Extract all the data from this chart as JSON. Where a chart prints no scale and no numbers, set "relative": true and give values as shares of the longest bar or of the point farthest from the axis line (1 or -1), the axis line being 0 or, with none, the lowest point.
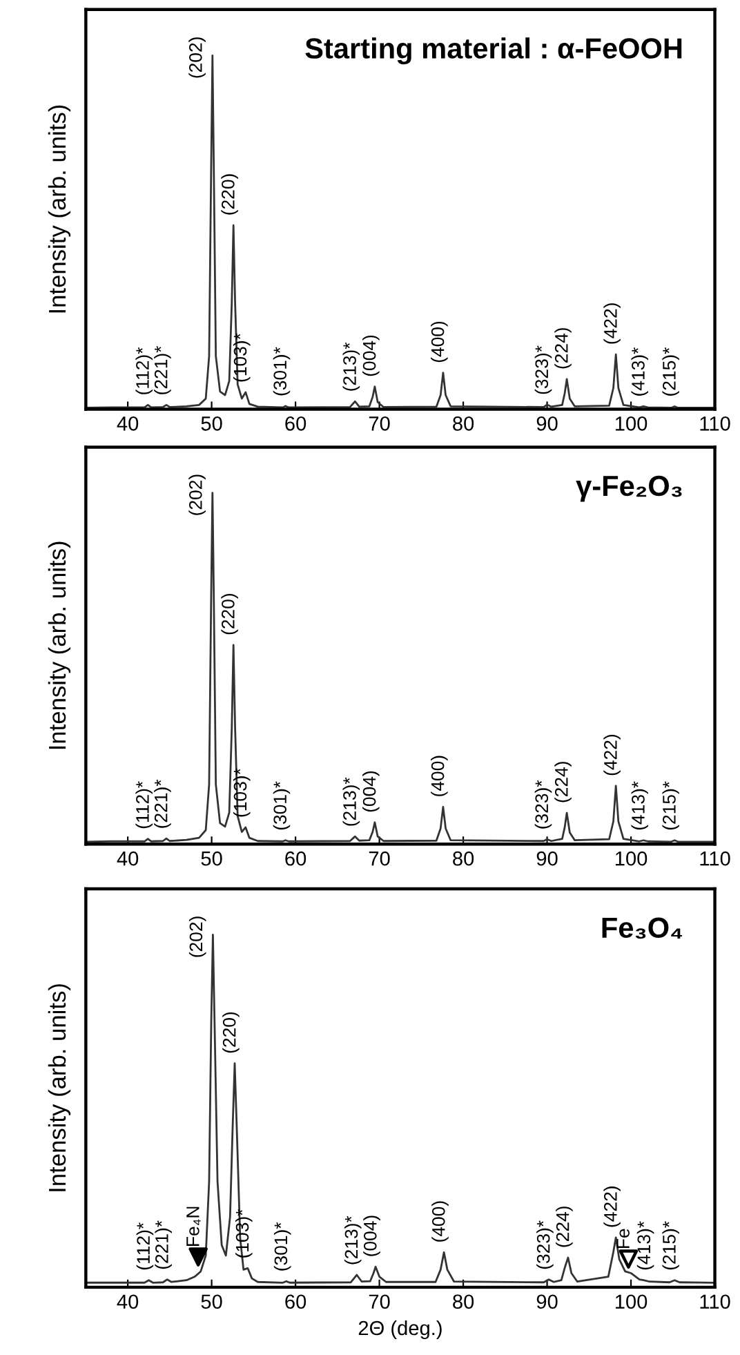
{
  "chart_data": [
    {
      "type": "line",
      "title": "Starting material : α-FeOOH",
      "ylabel": "Intensity (arb. units)",
      "relative": true,
      "xlim": [
        35,
        110
      ],
      "xticks": [
        40,
        50,
        60,
        70,
        80,
        90,
        100,
        110
      ],
      "grid": false,
      "marker": "none",
      "line_style": "solid",
      "series": [
        {
          "color": "#333333",
          "x": [
            35,
            38,
            40,
            42.0,
            42.4,
            42.8,
            44.2,
            44.6,
            45.0,
            47,
            48.5,
            49.3,
            49.7,
            49.95,
            50.1,
            50.25,
            50.5,
            51.0,
            51.6,
            52.1,
            52.4,
            52.6,
            52.8,
            53.1,
            53.6,
            54.05,
            54.5,
            55.5,
            58.5,
            58.8,
            59.2,
            66.5,
            67.1,
            67.6,
            68.8,
            69.2,
            69.45,
            69.8,
            70.5,
            76.8,
            77.3,
            77.6,
            77.9,
            78.5,
            89.6,
            90.0,
            90.5,
            91.8,
            92.1,
            92.35,
            92.7,
            93.3,
            97.4,
            97.9,
            98.2,
            98.5,
            99.1,
            101.0,
            101.5,
            102,
            104.8,
            105.2,
            105.6,
            110
          ],
          "values": [
            0.004,
            0.005,
            0.005,
            0.005,
            0.012,
            0.005,
            0.006,
            0.012,
            0.006,
            0.008,
            0.012,
            0.03,
            0.15,
            0.7,
            1.0,
            0.7,
            0.15,
            0.05,
            0.04,
            0.08,
            0.3,
            0.52,
            0.3,
            0.07,
            0.03,
            0.048,
            0.015,
            0.007,
            0.005,
            0.009,
            0.005,
            0.006,
            0.022,
            0.007,
            0.008,
            0.035,
            0.064,
            0.02,
            0.006,
            0.007,
            0.04,
            0.103,
            0.04,
            0.008,
            0.006,
            0.013,
            0.007,
            0.012,
            0.045,
            0.085,
            0.03,
            0.008,
            0.01,
            0.06,
            0.155,
            0.06,
            0.012,
            0.005,
            0.008,
            0.005,
            0.004,
            0.008,
            0.004,
            0.004
          ]
        }
      ],
      "annotations": [
        {
          "text": "(112)*",
          "x": 42.4,
          "y": 0.012
        },
        {
          "text": "(221)*",
          "x": 44.6,
          "y": 0.012
        },
        {
          "text": "(202)",
          "x": 50.1,
          "y": 1.0
        },
        {
          "text": "(220)",
          "x": 52.6,
          "y": 0.52
        },
        {
          "text": "(103)*",
          "x": 54.05,
          "y": 0.048
        },
        {
          "text": "(301)*",
          "x": 58.8,
          "y": 0.009
        },
        {
          "text": "(213)*",
          "x": 67.1,
          "y": 0.022
        },
        {
          "text": "(004)",
          "x": 69.45,
          "y": 0.064
        },
        {
          "text": "(400)",
          "x": 77.6,
          "y": 0.103
        },
        {
          "text": "(323)*",
          "x": 90.0,
          "y": 0.013
        },
        {
          "text": "(224)",
          "x": 92.35,
          "y": 0.085
        },
        {
          "text": "(422)",
          "x": 98.2,
          "y": 0.155
        },
        {
          "text": "(413)*",
          "x": 101.5,
          "y": 0.008
        },
        {
          "text": "(215)*",
          "x": 105.2,
          "y": 0.008
        }
      ]
    },
    {
      "type": "line",
      "title": "γ-Fe₂O₃",
      "ylabel": "Intensity (arb. units)",
      "relative": true,
      "xlim": [
        35,
        110
      ],
      "xticks": [
        40,
        50,
        60,
        70,
        80,
        90,
        100,
        110
      ],
      "grid": false,
      "marker": "none",
      "line_style": "solid",
      "series": [
        {
          "color": "#333333",
          "x": [
            35,
            38,
            40,
            42.0,
            42.4,
            42.8,
            44.2,
            44.6,
            45.0,
            47,
            48.5,
            49.3,
            49.7,
            49.95,
            50.1,
            50.25,
            50.5,
            51.0,
            51.6,
            52.1,
            52.4,
            52.6,
            52.8,
            53.1,
            53.6,
            54.05,
            54.5,
            55.5,
            58.5,
            58.8,
            59.2,
            66.5,
            67.1,
            67.6,
            68.8,
            69.2,
            69.45,
            69.8,
            70.5,
            76.8,
            77.3,
            77.6,
            77.9,
            78.5,
            89.6,
            90.0,
            90.5,
            91.8,
            92.1,
            92.35,
            92.7,
            93.3,
            97.4,
            97.9,
            98.2,
            98.5,
            99.1,
            101.0,
            101.5,
            102,
            104.8,
            105.2,
            105.6,
            110
          ],
          "values": [
            0.007,
            0.008,
            0.008,
            0.008,
            0.015,
            0.008,
            0.009,
            0.016,
            0.009,
            0.012,
            0.018,
            0.04,
            0.17,
            0.72,
            1.0,
            0.72,
            0.17,
            0.06,
            0.05,
            0.09,
            0.33,
            0.567,
            0.33,
            0.08,
            0.035,
            0.048,
            0.018,
            0.009,
            0.008,
            0.011,
            0.008,
            0.009,
            0.022,
            0.01,
            0.011,
            0.035,
            0.062,
            0.022,
            0.009,
            0.01,
            0.045,
            0.106,
            0.045,
            0.011,
            0.009,
            0.014,
            0.009,
            0.015,
            0.048,
            0.089,
            0.033,
            0.011,
            0.014,
            0.065,
            0.166,
            0.065,
            0.015,
            0.008,
            0.011,
            0.008,
            0.007,
            0.011,
            0.007,
            0.007
          ]
        }
      ],
      "annotations": [
        {
          "text": "(112)*",
          "x": 42.4,
          "y": 0.015
        },
        {
          "text": "(221)*",
          "x": 44.6,
          "y": 0.016
        },
        {
          "text": "(202)",
          "x": 50.1,
          "y": 1.0
        },
        {
          "text": "(220)",
          "x": 52.6,
          "y": 0.567
        },
        {
          "text": "(103)*",
          "x": 54.05,
          "y": 0.048
        },
        {
          "text": "(301)*",
          "x": 58.8,
          "y": 0.011
        },
        {
          "text": "(213)*",
          "x": 67.1,
          "y": 0.022
        },
        {
          "text": "(004)",
          "x": 69.45,
          "y": 0.062
        },
        {
          "text": "(400)",
          "x": 77.6,
          "y": 0.106
        },
        {
          "text": "(323)*",
          "x": 90.0,
          "y": 0.014
        },
        {
          "text": "(224)",
          "x": 92.35,
          "y": 0.089
        },
        {
          "text": "(422)",
          "x": 98.2,
          "y": 0.166
        },
        {
          "text": "(413)*",
          "x": 101.5,
          "y": 0.011
        },
        {
          "text": "(215)*",
          "x": 105.2,
          "y": 0.011
        }
      ]
    },
    {
      "type": "line",
      "title": "Fe₃O₄",
      "xlabel": "2Θ (deg.)",
      "ylabel": "Intensity (arb. units)",
      "relative": true,
      "xlim": [
        35,
        110
      ],
      "xticks": [
        40,
        50,
        60,
        70,
        80,
        90,
        100,
        110
      ],
      "grid": false,
      "line_style": "solid",
      "series": [
        {
          "color": "#333333",
          "marker": "none",
          "x": [
            35,
            38,
            40,
            42.0,
            42.5,
            43.0,
            44.2,
            44.7,
            45.2,
            47,
            48.0,
            48.7,
            49.3,
            49.7,
            49.95,
            50.15,
            50.35,
            50.7,
            51.2,
            51.7,
            52.2,
            52.5,
            52.75,
            53.0,
            53.4,
            53.8,
            54.3,
            54.8,
            55.5,
            58.5,
            58.9,
            59.3,
            66.6,
            67.3,
            67.9,
            68.9,
            69.3,
            69.55,
            70.0,
            70.8,
            76.7,
            77.3,
            77.7,
            78.1,
            78.9,
            89.6,
            90.2,
            90.8,
            91.7,
            92.1,
            92.5,
            92.9,
            93.6,
            97.3,
            97.9,
            98.2,
            98.6,
            99.3,
            100.0,
            101.0,
            101.5,
            102.2,
            104.6,
            105.2,
            105.8,
            110
          ],
          "values": [
            0.013,
            0.013,
            0.013,
            0.013,
            0.02,
            0.013,
            0.014,
            0.022,
            0.015,
            0.02,
            0.03,
            0.045,
            0.09,
            0.3,
            0.75,
            1.0,
            0.75,
            0.3,
            0.12,
            0.09,
            0.2,
            0.45,
            0.635,
            0.45,
            0.14,
            0.05,
            0.054,
            0.025,
            0.015,
            0.013,
            0.017,
            0.013,
            0.014,
            0.035,
            0.016,
            0.017,
            0.04,
            0.058,
            0.03,
            0.015,
            0.015,
            0.05,
            0.099,
            0.05,
            0.016,
            0.014,
            0.022,
            0.015,
            0.02,
            0.055,
            0.084,
            0.04,
            0.016,
            0.03,
            0.1,
            0.141,
            0.08,
            0.045,
            0.04,
            0.022,
            0.02,
            0.016,
            0.014,
            0.02,
            0.014,
            0.013
          ]
        },
        {
          "type": "scatter",
          "marker": "triangle",
          "color": "#000000",
          "x": [
            48.4
          ],
          "values": [
            0.086
          ]
        },
        {
          "type": "scatter",
          "marker": "triangle",
          "color": "#ffffff",
          "x": [
            99.7
          ],
          "values": [
            0.08
          ]
        }
      ],
      "annotations": [
        {
          "text": "(112)*",
          "x": 42.5,
          "y": 0.02
        },
        {
          "text": "(221)*",
          "x": 44.7,
          "y": 0.022
        },
        {
          "text": "Fe₄N",
          "x": 48.4,
          "y": 0.086
        },
        {
          "text": "(202)",
          "x": 50.15,
          "y": 1.0
        },
        {
          "text": "(220)",
          "x": 52.75,
          "y": 0.635
        },
        {
          "text": "(103)*",
          "x": 54.3,
          "y": 0.054
        },
        {
          "text": "(301)*",
          "x": 58.9,
          "y": 0.017
        },
        {
          "text": "(213)*",
          "x": 67.3,
          "y": 0.035
        },
        {
          "text": "(004)",
          "x": 69.55,
          "y": 0.058
        },
        {
          "text": "(400)",
          "x": 77.7,
          "y": 0.099
        },
        {
          "text": "(323)*",
          "x": 90.2,
          "y": 0.022
        },
        {
          "text": "(224)",
          "x": 92.5,
          "y": 0.084
        },
        {
          "text": "(422)",
          "x": 98.2,
          "y": 0.141
        },
        {
          "text": "Fe",
          "x": 99.7,
          "y": 0.08
        },
        {
          "text": "(413)*",
          "x": 101.5,
          "y": 0.02
        },
        {
          "text": "(215)*",
          "x": 105.2,
          "y": 0.02
        }
      ]
    }
  ]
}
